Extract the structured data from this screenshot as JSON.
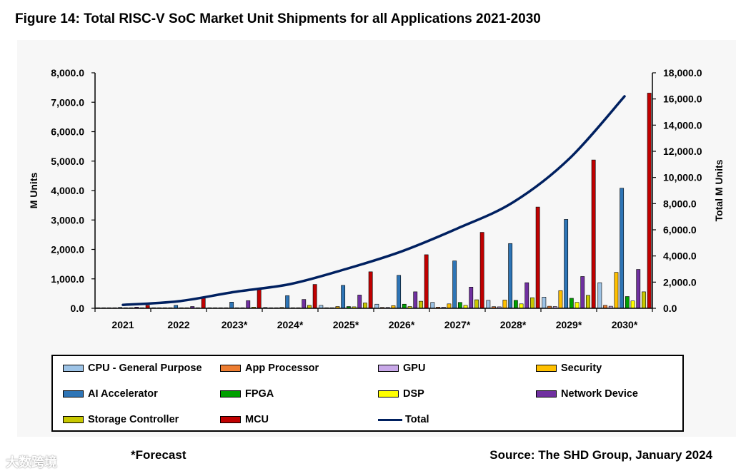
{
  "figure_title": "Figure 14: Total RISC-V SoC Market Unit Shipments for all Applications 2021-2030",
  "footnote": "*Forecast",
  "source": "Source: The SHD Group, January 2024",
  "watermark": "大数跨境",
  "chart_data": {
    "type": "bar",
    "categories": [
      "2021",
      "2022",
      "2023*",
      "2024*",
      "2025*",
      "2026*",
      "2027*",
      "2028*",
      "2029*",
      "2030*"
    ],
    "ylabel": "M Units",
    "y2label": "Total M Units",
    "ylim": [
      0,
      8000
    ],
    "y2lim": [
      0,
      18000
    ],
    "y_ticks": [
      "0.0",
      "1,000.0",
      "2,000.0",
      "3,000.0",
      "4,000.0",
      "5,000.0",
      "6,000.0",
      "7,000.0",
      "8,000.0"
    ],
    "y2_ticks": [
      "0.0",
      "2,000.0",
      "4,000.0",
      "6,000.0",
      "8,000.0",
      "10,000.0",
      "12,000.0",
      "14,000.0",
      "16,000.0",
      "18,000.0"
    ],
    "series": [
      {
        "name": "CPU - General Purpose",
        "color": "#9dc3e6",
        "values": [
          10,
          15,
          20,
          30,
          100,
          140,
          200,
          270,
          380,
          870
        ]
      },
      {
        "name": "App Processor",
        "color": "#ed7d31",
        "values": [
          3,
          5,
          8,
          12,
          20,
          30,
          40,
          55,
          70,
          100
        ]
      },
      {
        "name": "GPU",
        "color": "#c8a8e8",
        "values": [
          2,
          3,
          5,
          10,
          20,
          30,
          40,
          50,
          60,
          70
        ]
      },
      {
        "name": "Security",
        "color": "#ffc000",
        "values": [
          5,
          10,
          15,
          30,
          60,
          90,
          150,
          280,
          600,
          1220
        ]
      },
      {
        "name": "AI Accelerator",
        "color": "#2e75b6",
        "values": [
          30,
          100,
          210,
          430,
          780,
          1120,
          1610,
          2200,
          3020,
          4080
        ]
      },
      {
        "name": "FPGA",
        "color": "#00a000",
        "values": [
          3,
          5,
          10,
          20,
          60,
          140,
          200,
          270,
          340,
          400
        ]
      },
      {
        "name": "DSP",
        "color": "#ffff00",
        "values": [
          3,
          5,
          10,
          20,
          50,
          60,
          100,
          150,
          200,
          250
        ]
      },
      {
        "name": "Network Device",
        "color": "#7030a0",
        "values": [
          40,
          60,
          260,
          300,
          450,
          560,
          720,
          870,
          1080,
          1320
        ]
      },
      {
        "name": "Storage Controller",
        "color": "#c8c800",
        "values": [
          10,
          20,
          40,
          100,
          180,
          240,
          290,
          360,
          440,
          560
        ]
      },
      {
        "name": "MCU",
        "color": "#c00000",
        "values": [
          100,
          370,
          650,
          810,
          1240,
          1820,
          2580,
          3440,
          5040,
          7310
        ]
      }
    ],
    "line_series": {
      "name": "Total",
      "color": "#002060",
      "axis": "y2",
      "values": [
        260,
        540,
        1250,
        1850,
        3000,
        4350,
        6100,
        8100,
        11400,
        16200
      ]
    },
    "grid": false,
    "legend_position": "bottom"
  },
  "legend": {
    "items": [
      {
        "label": "CPU - General Purpose",
        "color": "#9dc3e6",
        "kind": "box"
      },
      {
        "label": "App Processor",
        "color": "#ed7d31",
        "kind": "box"
      },
      {
        "label": "GPU",
        "color": "#c8a8e8",
        "kind": "box"
      },
      {
        "label": "Security",
        "color": "#ffc000",
        "kind": "box"
      },
      {
        "label": "AI Accelerator",
        "color": "#2e75b6",
        "kind": "box"
      },
      {
        "label": "FPGA",
        "color": "#00a000",
        "kind": "box"
      },
      {
        "label": "DSP",
        "color": "#ffff00",
        "kind": "box"
      },
      {
        "label": "Network Device",
        "color": "#7030a0",
        "kind": "box"
      },
      {
        "label": "Storage Controller",
        "color": "#c8c800",
        "kind": "box"
      },
      {
        "label": "MCU",
        "color": "#c00000",
        "kind": "box"
      },
      {
        "label": "Total",
        "color": "#002060",
        "kind": "line"
      }
    ]
  }
}
